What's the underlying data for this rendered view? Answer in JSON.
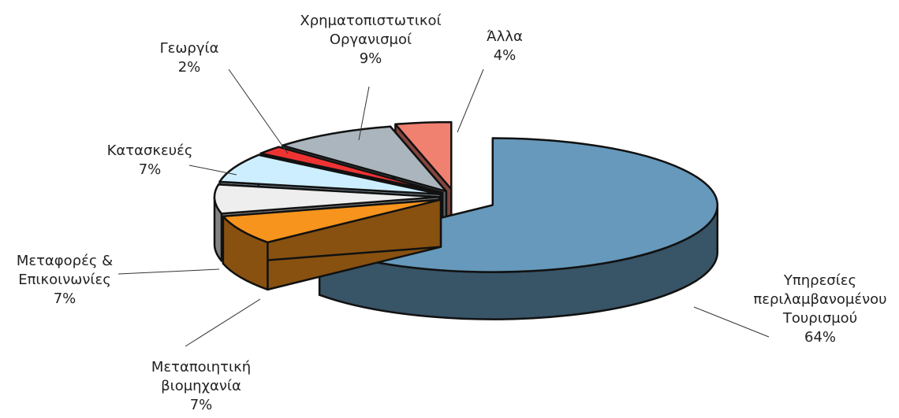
{
  "chart_data": {
    "type": "pie3d",
    "categories": [
      "Υπηρεσίες\nπεριλαμβανομένου\nΤουρισμού",
      "Μεταποιητική\nβιομηχανία",
      "Μεταφορές &\nΕπικοινωνίες",
      "Κατασκευές",
      "Γεωργία",
      "Χρηματοπιστωτικοί\nΟργανισμοί",
      "Άλλα"
    ],
    "values": [
      64,
      7,
      7,
      7,
      2,
      9,
      4
    ],
    "value_labels": [
      "64%",
      "7%",
      "7%",
      "7%",
      "2%",
      "9%",
      "4%"
    ],
    "colors": [
      "#6699bb",
      "#f7941d",
      "#eeeeee",
      "#cceeff",
      "#ee3333",
      "#aab5bd",
      "#f08070"
    ]
  }
}
